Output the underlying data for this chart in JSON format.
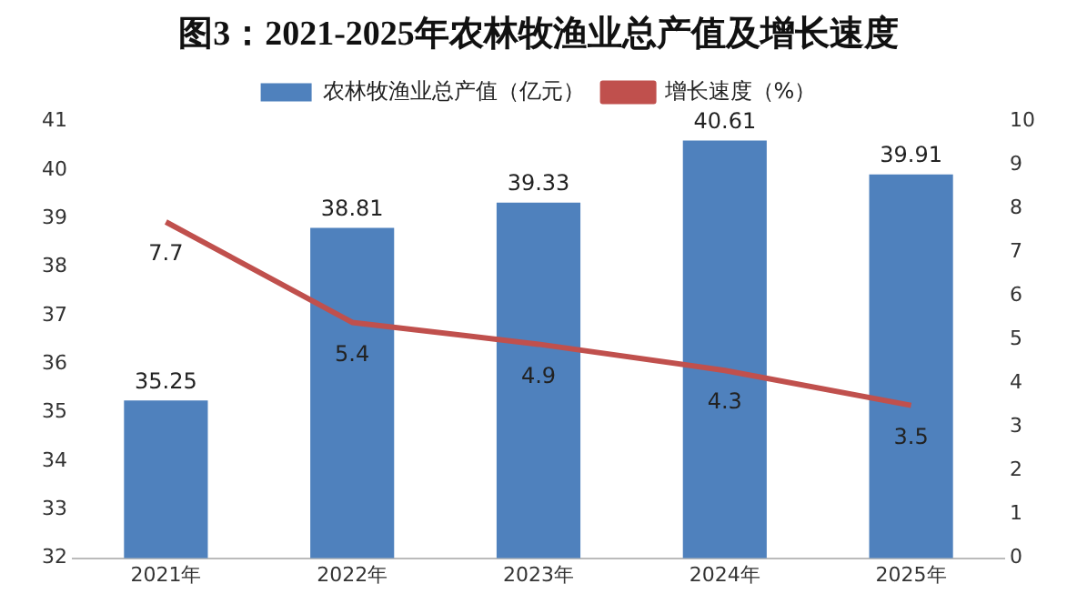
{
  "chart_data": {
    "type": "bar",
    "title": "图3：2021-2025年农林牧渔业总产值及增长速度",
    "categories": [
      "2021年",
      "2022年",
      "2023年",
      "2024年",
      "2025年"
    ],
    "series": [
      {
        "name": "农林牧渔业总产值（亿元）",
        "color": "#4f81bd",
        "values": [
          35.25,
          38.81,
          39.33,
          40.61,
          39.91
        ]
      },
      {
        "name": "增长速度（%）",
        "type": "line",
        "axis": "y2",
        "color": "#c0504d",
        "values": [
          7.7,
          5.4,
          4.9,
          4.3,
          3.5
        ]
      }
    ],
    "ylim": [
      32,
      41
    ],
    "yticks": [
      32,
      33,
      34,
      35,
      36,
      37,
      38,
      39,
      40,
      41
    ],
    "y2lim": [
      0,
      10
    ],
    "y2ticks": [
      0,
      1,
      2,
      3,
      4,
      5,
      6,
      7,
      8,
      9,
      10
    ],
    "grid": false,
    "legend": "top",
    "data_labels": true,
    "marker": "none"
  }
}
